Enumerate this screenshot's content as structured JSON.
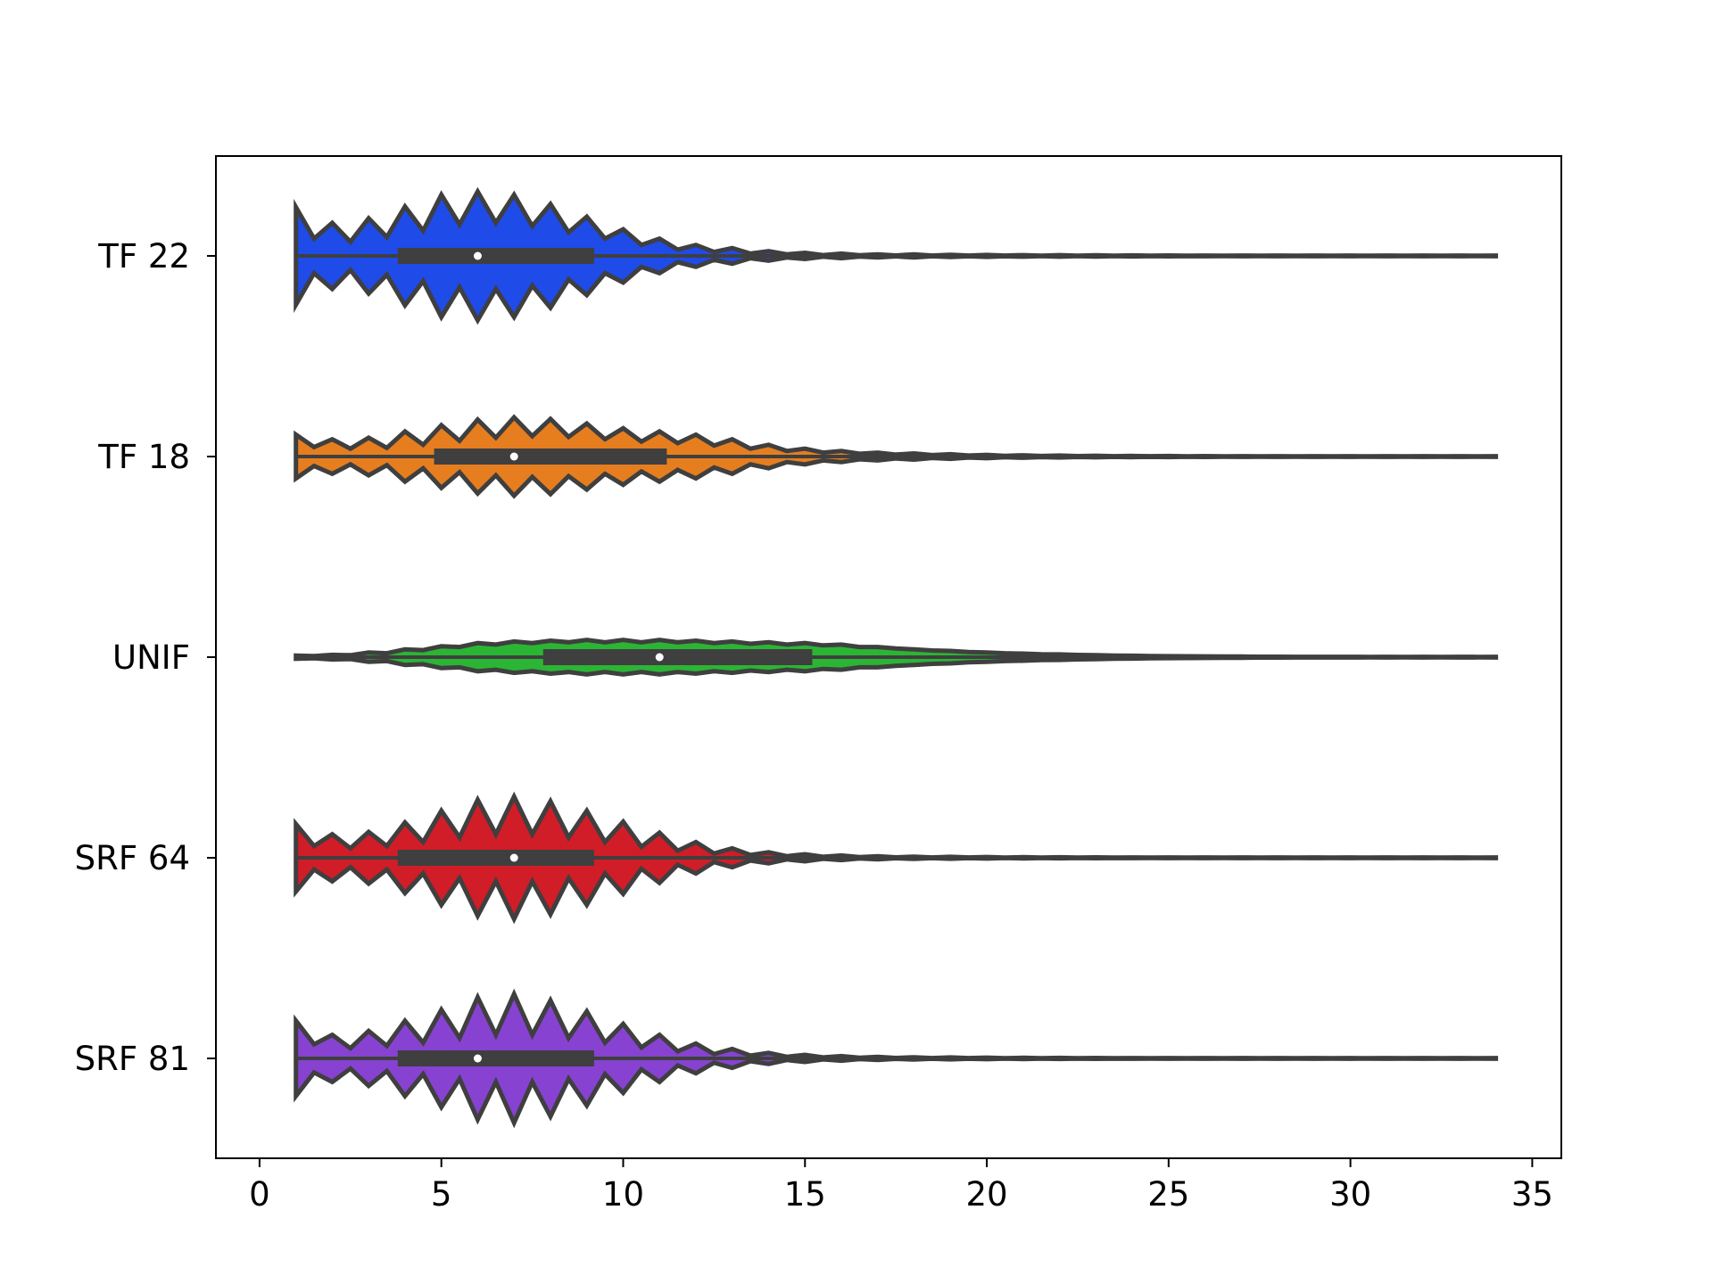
{
  "chart_data": {
    "type": "violin",
    "orientation": "horizontal",
    "title": "",
    "xlabel": "",
    "ylabel": "",
    "xlim": [
      -1.2,
      35.8
    ],
    "x_ticks": [
      0,
      5,
      10,
      15,
      20,
      25,
      30,
      35
    ],
    "grid": false,
    "legend": "none",
    "support_step": 0.5,
    "series": [
      {
        "name": "TF 22",
        "color": "#1f4be8",
        "min": 1,
        "max": 34,
        "q1": 3.8,
        "median": 6,
        "q3": 9.2,
        "peak_density": [
          0.62,
          0.42,
          0.48,
          0.63,
          0.78,
          0.82,
          0.78,
          0.66,
          0.5,
          0.34,
          0.22,
          0.14,
          0.1,
          0.06,
          0.04,
          0.03,
          0.02,
          0.02,
          0.015,
          0.012,
          0.01,
          0.01,
          0.008,
          0.007,
          0.006,
          0.005,
          0.005,
          0.005,
          0.004,
          0.004,
          0.004,
          0.004,
          0.004,
          0.004
        ],
        "trough_density": [
          0.22,
          0.18,
          0.24,
          0.32,
          0.4,
          0.42,
          0.38,
          0.3,
          0.22,
          0.14,
          0.08,
          0.05,
          0.03,
          0.02,
          0.01,
          0.008,
          0.006,
          0.005,
          0.004,
          0.004,
          0.003,
          0.003,
          0.003,
          0.002,
          0.002,
          0.002,
          0.002,
          0.002,
          0.002,
          0.002,
          0.002,
          0.002,
          0.002
        ]
      },
      {
        "name": "TF 18",
        "color": "#e67e1f",
        "min": 1,
        "max": 34,
        "q1": 4.8,
        "median": 7,
        "q3": 11.2,
        "peak_density": [
          0.28,
          0.22,
          0.24,
          0.32,
          0.4,
          0.47,
          0.5,
          0.48,
          0.42,
          0.36,
          0.32,
          0.28,
          0.22,
          0.15,
          0.1,
          0.07,
          0.05,
          0.04,
          0.03,
          0.022,
          0.016,
          0.012,
          0.01,
          0.008,
          0.007,
          0.006,
          0.005,
          0.005,
          0.004,
          0.004,
          0.004,
          0.004,
          0.004,
          0.004
        ],
        "trough_density": [
          0.12,
          0.1,
          0.11,
          0.15,
          0.2,
          0.24,
          0.26,
          0.25,
          0.22,
          0.19,
          0.17,
          0.14,
          0.1,
          0.07,
          0.05,
          0.035,
          0.025,
          0.018,
          0.013,
          0.009,
          0.007,
          0.006,
          0.005,
          0.004,
          0.003,
          0.003,
          0.003,
          0.002,
          0.002,
          0.002,
          0.002,
          0.002,
          0.002
        ]
      },
      {
        "name": "UNIF",
        "color": "#2bb534",
        "min": 1,
        "max": 34,
        "q1": 7.8,
        "median": 11,
        "q3": 15.2,
        "peak_density": [
          0.02,
          0.03,
          0.06,
          0.1,
          0.14,
          0.18,
          0.2,
          0.21,
          0.22,
          0.22,
          0.22,
          0.21,
          0.2,
          0.19,
          0.18,
          0.16,
          0.13,
          0.1,
          0.08,
          0.06,
          0.045,
          0.035,
          0.025,
          0.018,
          0.013,
          0.01,
          0.008,
          0.006,
          0.005,
          0.004,
          0.004,
          0.004,
          0.004,
          0.004
        ],
        "trough_density": [
          0.015,
          0.025,
          0.05,
          0.09,
          0.13,
          0.16,
          0.18,
          0.19,
          0.19,
          0.19,
          0.19,
          0.18,
          0.17,
          0.16,
          0.15,
          0.13,
          0.11,
          0.085,
          0.065,
          0.05,
          0.038,
          0.028,
          0.02,
          0.015,
          0.011,
          0.008,
          0.006,
          0.005,
          0.004,
          0.003,
          0.003,
          0.003,
          0.003
        ]
      },
      {
        "name": "SRF 64",
        "color": "#d01d28",
        "min": 1,
        "max": 34,
        "q1": 3.8,
        "median": 7,
        "q3": 9.2,
        "peak_density": [
          0.43,
          0.3,
          0.33,
          0.45,
          0.6,
          0.74,
          0.78,
          0.72,
          0.6,
          0.46,
          0.32,
          0.2,
          0.12,
          0.07,
          0.045,
          0.03,
          0.02,
          0.015,
          0.012,
          0.01,
          0.008,
          0.007,
          0.006,
          0.005,
          0.005,
          0.004,
          0.004,
          0.004,
          0.004,
          0.004,
          0.004,
          0.004,
          0.004,
          0.004
        ],
        "trough_density": [
          0.15,
          0.12,
          0.15,
          0.2,
          0.26,
          0.3,
          0.3,
          0.26,
          0.2,
          0.14,
          0.09,
          0.055,
          0.035,
          0.02,
          0.012,
          0.008,
          0.006,
          0.005,
          0.004,
          0.003,
          0.003,
          0.003,
          0.002,
          0.002,
          0.002,
          0.002,
          0.002,
          0.002,
          0.002,
          0.002,
          0.002,
          0.002,
          0.002
        ]
      },
      {
        "name": "SRF 81",
        "color": "#8742d2",
        "min": 1,
        "max": 34,
        "q1": 3.8,
        "median": 6,
        "q3": 9.2,
        "peak_density": [
          0.48,
          0.3,
          0.35,
          0.48,
          0.62,
          0.78,
          0.82,
          0.74,
          0.6,
          0.44,
          0.3,
          0.19,
          0.12,
          0.07,
          0.045,
          0.03,
          0.02,
          0.015,
          0.012,
          0.01,
          0.008,
          0.007,
          0.006,
          0.005,
          0.005,
          0.004,
          0.004,
          0.004,
          0.004,
          0.004,
          0.004,
          0.004,
          0.004,
          0.004
        ],
        "trough_density": [
          0.18,
          0.13,
          0.16,
          0.2,
          0.26,
          0.3,
          0.3,
          0.26,
          0.2,
          0.14,
          0.09,
          0.055,
          0.035,
          0.02,
          0.012,
          0.008,
          0.006,
          0.005,
          0.004,
          0.003,
          0.003,
          0.003,
          0.002,
          0.002,
          0.002,
          0.002,
          0.002,
          0.002,
          0.002,
          0.002,
          0.002,
          0.002,
          0.002
        ]
      }
    ]
  }
}
